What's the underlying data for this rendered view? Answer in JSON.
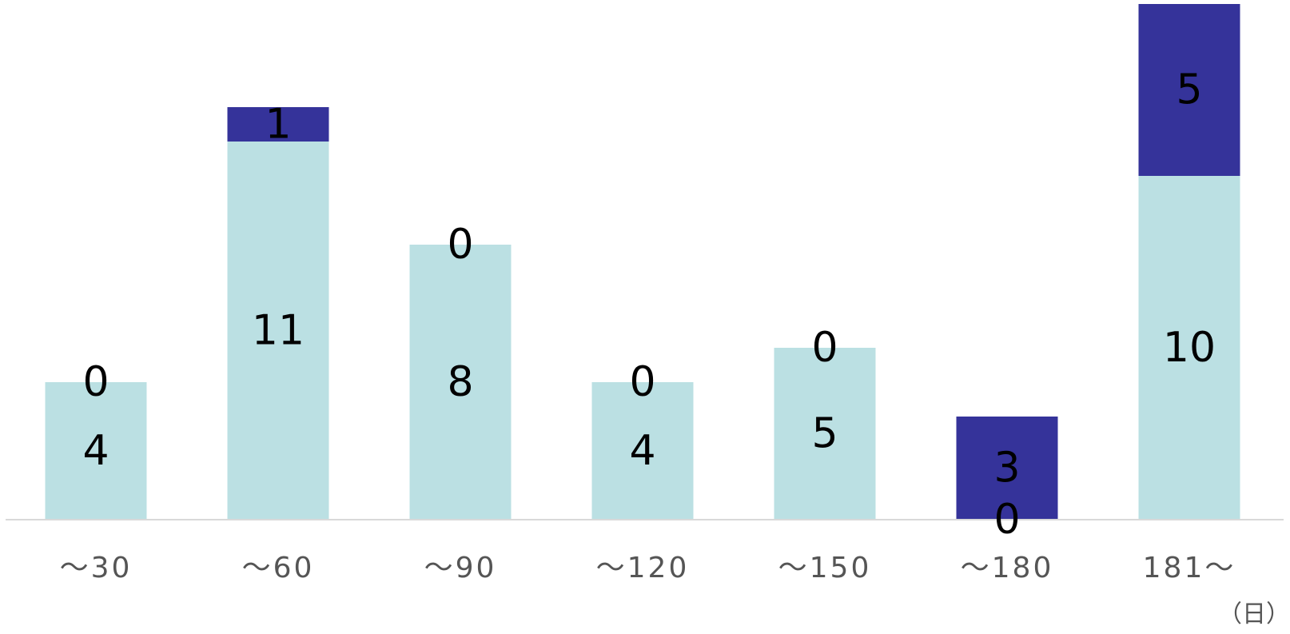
{
  "chart_data": {
    "type": "bar",
    "stacked": true,
    "categories": [
      "～30",
      "～60",
      "～90",
      "～120",
      "～150",
      "～180",
      "181～"
    ],
    "series": [
      {
        "values": [
          4,
          11,
          8,
          4,
          5,
          0,
          10
        ],
        "color": "#bbe0e3"
      },
      {
        "values": [
          0,
          1,
          0,
          0,
          0,
          3,
          5
        ],
        "color": "#35339a"
      }
    ],
    "x_unit_label": "（日）",
    "ylim": [
      0,
      15
    ],
    "grid": false,
    "legend": "none"
  }
}
